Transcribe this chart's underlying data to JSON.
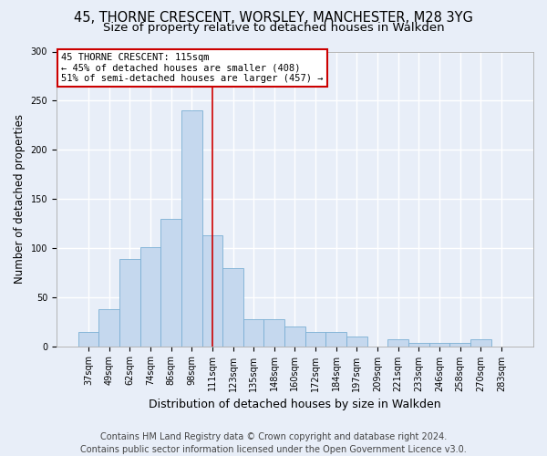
{
  "title": "45, THORNE CRESCENT, WORSLEY, MANCHESTER, M28 3YG",
  "subtitle": "Size of property relative to detached houses in Walkden",
  "xlabel": "Distribution of detached houses by size in Walkden",
  "ylabel": "Number of detached properties",
  "footer": "Contains HM Land Registry data © Crown copyright and database right 2024.\nContains public sector information licensed under the Open Government Licence v3.0.",
  "categories": [
    "37sqm",
    "49sqm",
    "62sqm",
    "74sqm",
    "86sqm",
    "98sqm",
    "111sqm",
    "123sqm",
    "135sqm",
    "148sqm",
    "160sqm",
    "172sqm",
    "184sqm",
    "197sqm",
    "209sqm",
    "221sqm",
    "233sqm",
    "246sqm",
    "258sqm",
    "270sqm",
    "283sqm"
  ],
  "values": [
    14,
    38,
    89,
    101,
    130,
    240,
    113,
    79,
    27,
    27,
    20,
    14,
    14,
    10,
    0,
    7,
    3,
    3,
    3,
    7,
    0
  ],
  "bar_color": "#c5d8ee",
  "bar_edge_color": "#7aafd4",
  "annotation_box_color": "#ffffff",
  "annotation_border_color": "#cc0000",
  "annotation_text": "45 THORNE CRESCENT: 115sqm\n← 45% of detached houses are smaller (408)\n51% of semi-detached houses are larger (457) →",
  "property_bar_index": 6,
  "property_line_color": "#cc0000",
  "ylim": [
    0,
    300
  ],
  "yticks": [
    0,
    50,
    100,
    150,
    200,
    250,
    300
  ],
  "bg_color": "#e8eef8",
  "grid_color": "#ffffff",
  "title_fontsize": 10.5,
  "subtitle_fontsize": 9.5,
  "xlabel_fontsize": 9,
  "ylabel_fontsize": 8.5,
  "tick_fontsize": 7,
  "annotation_fontsize": 7.5,
  "footer_fontsize": 7
}
